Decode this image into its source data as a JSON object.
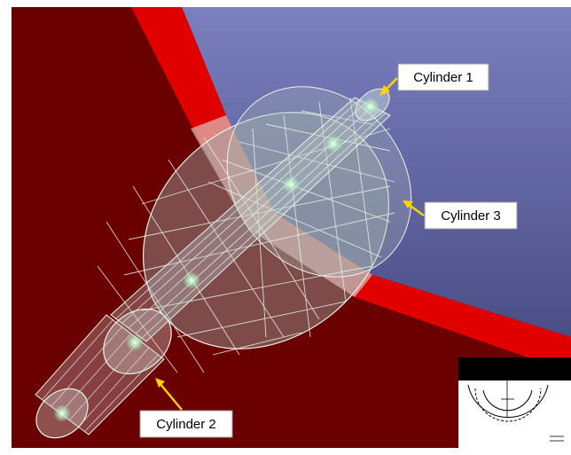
{
  "labels": {
    "cylinder_1": "Cylinder 1",
    "cylinder_2": "Cylinder 2",
    "cylinder_3": "Cylinder 3"
  },
  "colors": {
    "background_dark_red": "#6b0000",
    "background_blue_top": "#7b7fbf",
    "background_blue_bottom": "#4b4e86",
    "red_band": "#e00000",
    "mesh_line": "#e9f4e8",
    "mesh_glow": "#b8f5c8",
    "cylinder_fill": "#8a9a98",
    "arrow": "#ffd400",
    "label_box": "#ffffff"
  },
  "inset": {
    "icon": "cross-section-thumbnail-icon"
  }
}
